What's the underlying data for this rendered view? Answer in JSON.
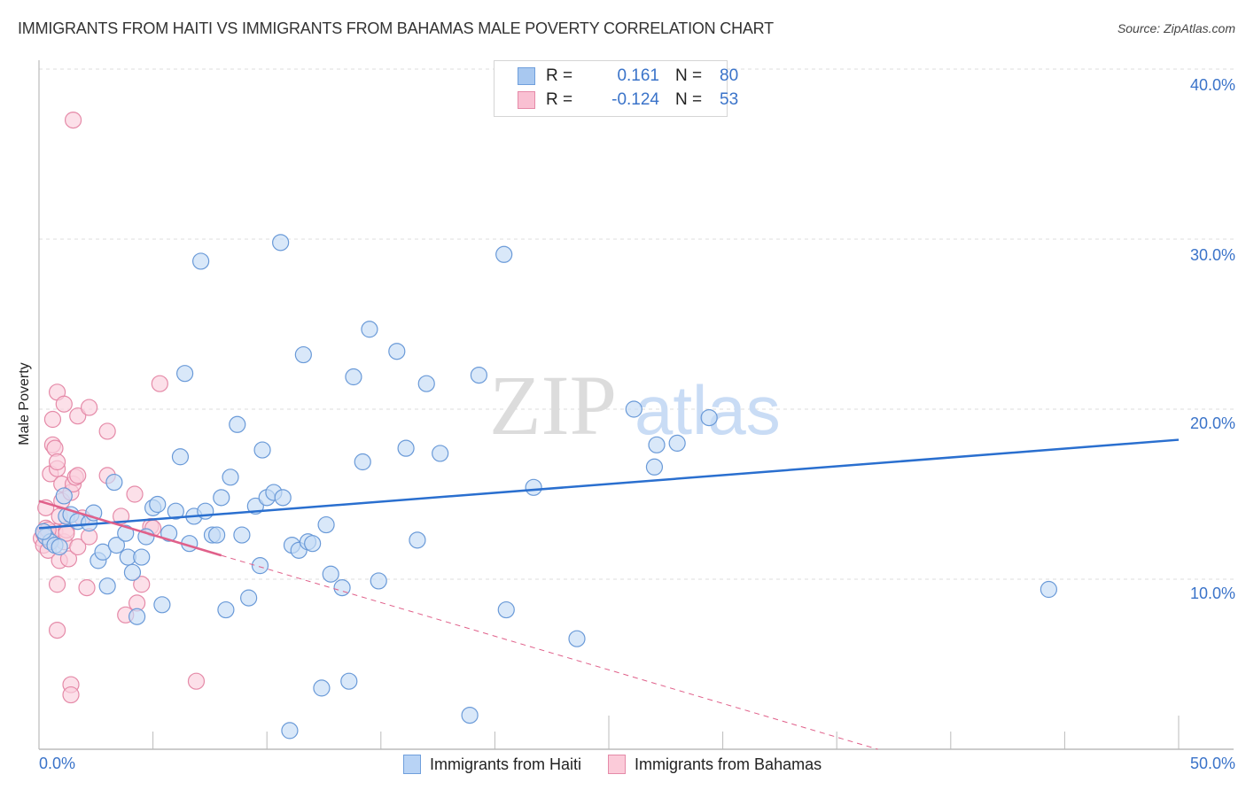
{
  "header": {
    "title": "IMMIGRANTS FROM HAITI VS IMMIGRANTS FROM BAHAMAS MALE POVERTY CORRELATION CHART",
    "source": "Source: ZipAtlas.com"
  },
  "legend": {
    "rows": [
      {
        "r_label": "R =",
        "r_value": "0.161",
        "n_label": "N =",
        "n_value": "80",
        "color": "#a8c8f0",
        "border": "#6f9fdc"
      },
      {
        "r_label": "R =",
        "r_value": "-0.124",
        "n_label": "N =",
        "n_value": "53",
        "color": "#f9c0d2",
        "border": "#e58aa8"
      }
    ]
  },
  "bottom_legend": {
    "items": [
      {
        "label": "Immigrants from Haiti",
        "color": "#b8d3f5",
        "border": "#6f9fdc"
      },
      {
        "label": "Immigrants from Bahamas",
        "color": "#fbcbd9",
        "border": "#e58aa8"
      }
    ]
  },
  "axes": {
    "ylabel": "Male Poverty",
    "y_ticks": [
      "40.0%",
      "30.0%",
      "20.0%",
      "10.0%"
    ],
    "x_ticks": [
      "0.0%",
      "50.0%"
    ]
  },
  "watermark": {
    "zip": "ZIP",
    "atlas": "atlas"
  },
  "colors": {
    "haiti_fill": "#c5dbf6",
    "haiti_stroke": "#6a9ad8",
    "haiti_line": "#2a6fcf",
    "bahamas_fill": "#fbd0dd",
    "bahamas_stroke": "#e58aa8",
    "bahamas_line": "#e0608a",
    "axis_text": "#3a73c9",
    "grid": "#dddddd"
  },
  "chart_data": {
    "type": "scatter",
    "title": "IMMIGRANTS FROM HAITI VS IMMIGRANTS FROM BAHAMAS MALE POVERTY CORRELATION CHART",
    "xlabel": "",
    "ylabel": "Male Poverty",
    "xlim": [
      0,
      50
    ],
    "ylim": [
      0,
      42
    ],
    "x_ticks": [
      "0.0%",
      "50.0%"
    ],
    "y_ticks": [
      10,
      20,
      30,
      40
    ],
    "grid": true,
    "legend_position": "top-center and bottom",
    "series": [
      {
        "name": "Immigrants from Haiti",
        "R": 0.161,
        "N": 80,
        "trend": {
          "x": [
            0,
            50
          ],
          "y": [
            13.0,
            18.2
          ]
        },
        "points": [
          [
            0.3,
            12.5
          ],
          [
            0.5,
            12.2
          ],
          [
            0.7,
            12.0
          ],
          [
            0.9,
            11.9
          ],
          [
            1.1,
            14.9
          ],
          [
            1.2,
            13.7
          ],
          [
            1.4,
            13.8
          ],
          [
            1.7,
            13.4
          ],
          [
            2.2,
            13.3
          ],
          [
            2.4,
            13.9
          ],
          [
            2.6,
            11.1
          ],
          [
            2.8,
            11.6
          ],
          [
            3.0,
            9.6
          ],
          [
            3.3,
            15.7
          ],
          [
            3.4,
            12.0
          ],
          [
            3.8,
            12.7
          ],
          [
            3.9,
            11.3
          ],
          [
            4.1,
            10.4
          ],
          [
            4.3,
            7.8
          ],
          [
            4.5,
            11.3
          ],
          [
            4.7,
            12.5
          ],
          [
            5.0,
            14.2
          ],
          [
            5.2,
            14.4
          ],
          [
            5.4,
            8.5
          ],
          [
            5.7,
            12.7
          ],
          [
            6.0,
            14.0
          ],
          [
            6.2,
            17.2
          ],
          [
            6.4,
            22.1
          ],
          [
            6.6,
            12.1
          ],
          [
            6.8,
            13.7
          ],
          [
            7.1,
            28.7
          ],
          [
            7.3,
            14.0
          ],
          [
            7.6,
            12.6
          ],
          [
            7.8,
            12.6
          ],
          [
            8.0,
            14.8
          ],
          [
            8.2,
            8.2
          ],
          [
            8.4,
            16.0
          ],
          [
            8.7,
            19.1
          ],
          [
            8.9,
            12.6
          ],
          [
            9.2,
            8.9
          ],
          [
            9.5,
            14.3
          ],
          [
            9.7,
            10.8
          ],
          [
            9.8,
            17.6
          ],
          [
            10.0,
            14.8
          ],
          [
            10.3,
            15.1
          ],
          [
            10.6,
            29.8
          ],
          [
            10.7,
            14.8
          ],
          [
            11.0,
            1.1
          ],
          [
            11.1,
            12.0
          ],
          [
            11.4,
            11.7
          ],
          [
            11.6,
            23.2
          ],
          [
            11.8,
            12.2
          ],
          [
            12.0,
            12.1
          ],
          [
            12.4,
            3.6
          ],
          [
            12.6,
            13.2
          ],
          [
            12.8,
            10.3
          ],
          [
            13.3,
            9.5
          ],
          [
            13.6,
            4.0
          ],
          [
            13.8,
            21.9
          ],
          [
            14.2,
            16.9
          ],
          [
            14.5,
            24.7
          ],
          [
            14.9,
            9.9
          ],
          [
            15.7,
            23.4
          ],
          [
            16.1,
            17.7
          ],
          [
            16.6,
            12.3
          ],
          [
            17.0,
            21.5
          ],
          [
            17.6,
            17.4
          ],
          [
            18.9,
            2.0
          ],
          [
            19.3,
            22.0
          ],
          [
            20.4,
            29.1
          ],
          [
            20.5,
            8.2
          ],
          [
            21.7,
            15.4
          ],
          [
            23.6,
            6.5
          ],
          [
            26.1,
            20.0
          ],
          [
            27.0,
            16.6
          ],
          [
            27.1,
            17.9
          ],
          [
            28.0,
            18.0
          ],
          [
            29.4,
            19.5
          ],
          [
            44.3,
            9.4
          ],
          [
            0.2,
            12.8
          ]
        ]
      },
      {
        "name": "Immigrants from Bahamas",
        "R": -0.124,
        "N": 53,
        "trend": {
          "x": [
            0,
            8.0
          ],
          "y": [
            14.6,
            11.4
          ],
          "dashed_extension": {
            "x": [
              8.0,
              36.8
            ],
            "y": [
              11.4,
              0.0
            ]
          }
        },
        "points": [
          [
            0.1,
            12.4
          ],
          [
            0.2,
            12.0
          ],
          [
            0.2,
            12.7
          ],
          [
            0.3,
            14.2
          ],
          [
            0.3,
            13.0
          ],
          [
            0.4,
            12.6
          ],
          [
            0.4,
            11.7
          ],
          [
            0.5,
            16.2
          ],
          [
            0.5,
            12.3
          ],
          [
            0.6,
            19.4
          ],
          [
            0.6,
            17.9
          ],
          [
            0.7,
            17.7
          ],
          [
            0.7,
            12.8
          ],
          [
            0.8,
            21.0
          ],
          [
            0.8,
            16.5
          ],
          [
            0.8,
            16.9
          ],
          [
            0.8,
            9.7
          ],
          [
            0.8,
            7.0
          ],
          [
            0.9,
            13.7
          ],
          [
            0.9,
            11.1
          ],
          [
            1.0,
            15.6
          ],
          [
            1.0,
            14.6
          ],
          [
            1.1,
            20.3
          ],
          [
            1.1,
            12.2
          ],
          [
            1.2,
            12.9
          ],
          [
            1.2,
            12.7
          ],
          [
            1.3,
            11.2
          ],
          [
            1.4,
            15.1
          ],
          [
            1.4,
            3.8
          ],
          [
            1.4,
            3.2
          ],
          [
            1.5,
            15.6
          ],
          [
            1.6,
            16.0
          ],
          [
            1.7,
            16.1
          ],
          [
            1.7,
            11.9
          ],
          [
            1.7,
            19.6
          ],
          [
            1.9,
            13.6
          ],
          [
            2.1,
            9.5
          ],
          [
            2.2,
            20.1
          ],
          [
            2.2,
            12.5
          ],
          [
            3.0,
            18.7
          ],
          [
            3.0,
            16.1
          ],
          [
            3.6,
            13.7
          ],
          [
            3.8,
            7.9
          ],
          [
            4.2,
            15.0
          ],
          [
            4.3,
            8.6
          ],
          [
            4.5,
            9.7
          ],
          [
            4.9,
            13.1
          ],
          [
            5.0,
            13.0
          ],
          [
            5.3,
            21.5
          ],
          [
            6.9,
            4.0
          ],
          [
            1.5,
            37.0
          ],
          [
            0.3,
            12.5
          ],
          [
            0.4,
            12.9
          ]
        ]
      }
    ]
  }
}
